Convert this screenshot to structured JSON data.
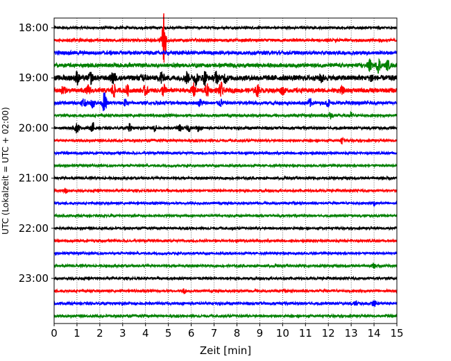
{
  "chart_data": {
    "type": "line",
    "title": "",
    "xlabel": "Zeit  [min]",
    "ylabel": "UTC (Lokalzeit = UTC + 02:00)",
    "xlim": [
      0,
      15
    ],
    "x_ticks": [
      "0",
      "1",
      "2",
      "3",
      "4",
      "5",
      "6",
      "7",
      "8",
      "9",
      "10",
      "11",
      "12",
      "13",
      "14",
      "15"
    ],
    "y_tick_labels": [
      "18:00",
      "19:00",
      "20:00",
      "21:00",
      "22:00",
      "23:00"
    ],
    "grid": "vertical dotted lines at each minute",
    "row_interval_min": 15,
    "trace_colors": [
      "#000000",
      "#ff0000",
      "#0000ff",
      "#008000"
    ],
    "series": [
      {
        "start": "18:00",
        "color": "#000000",
        "amp": 0.18,
        "events": []
      },
      {
        "start": "18:15",
        "color": "#ff0000",
        "amp": 0.22,
        "events": [
          {
            "t": 4.8,
            "a": 5.6
          }
        ]
      },
      {
        "start": "18:30",
        "color": "#0000ff",
        "amp": 0.28,
        "events": []
      },
      {
        "start": "18:45",
        "color": "#008000",
        "amp": 0.3,
        "events": [
          {
            "t": 13.8,
            "a": 0.9
          },
          {
            "t": 14.2,
            "a": 1.1
          },
          {
            "t": 14.6,
            "a": 0.7
          }
        ]
      },
      {
        "start": "19:00",
        "color": "#000000",
        "amp": 0.4,
        "events": [
          {
            "t": 1.0,
            "a": 0.9
          },
          {
            "t": 1.6,
            "a": 0.8
          },
          {
            "t": 2.6,
            "a": 1.0
          },
          {
            "t": 3.9,
            "a": 0.8
          },
          {
            "t": 4.7,
            "a": 0.9
          },
          {
            "t": 5.8,
            "a": 0.9
          },
          {
            "t": 6.2,
            "a": 1.0
          },
          {
            "t": 6.6,
            "a": 1.0
          },
          {
            "t": 7.1,
            "a": 0.9
          },
          {
            "t": 7.5,
            "a": 0.7
          },
          {
            "t": 11.7,
            "a": 0.6
          },
          {
            "t": 13.9,
            "a": 0.6
          }
        ]
      },
      {
        "start": "19:15",
        "color": "#ff0000",
        "amp": 0.35,
        "events": [
          {
            "t": 0.4,
            "a": 0.6
          },
          {
            "t": 1.5,
            "a": 0.7
          },
          {
            "t": 2.6,
            "a": 1.0
          },
          {
            "t": 3.2,
            "a": 0.7
          },
          {
            "t": 4.0,
            "a": 0.7
          },
          {
            "t": 4.8,
            "a": 0.9
          },
          {
            "t": 6.1,
            "a": 1.0
          },
          {
            "t": 6.7,
            "a": 0.8
          },
          {
            "t": 7.3,
            "a": 1.1
          },
          {
            "t": 8.9,
            "a": 0.8
          },
          {
            "t": 10.0,
            "a": 0.5
          },
          {
            "t": 12.6,
            "a": 0.4
          }
        ]
      },
      {
        "start": "19:30",
        "color": "#0000ff",
        "amp": 0.25,
        "events": [
          {
            "t": 1.3,
            "a": 0.8
          },
          {
            "t": 1.7,
            "a": 0.7
          },
          {
            "t": 2.2,
            "a": 1.6
          },
          {
            "t": 3.1,
            "a": 0.5
          },
          {
            "t": 6.4,
            "a": 0.5
          },
          {
            "t": 7.3,
            "a": 0.5
          },
          {
            "t": 11.2,
            "a": 0.6
          },
          {
            "t": 12.0,
            "a": 0.5
          }
        ]
      },
      {
        "start": "19:45",
        "color": "#008000",
        "amp": 0.2,
        "events": [
          {
            "t": 12.1,
            "a": 0.5
          },
          {
            "t": 13.0,
            "a": 0.4
          }
        ]
      },
      {
        "start": "20:00",
        "color": "#000000",
        "amp": 0.2,
        "events": [
          {
            "t": 1.0,
            "a": 0.8
          },
          {
            "t": 1.7,
            "a": 0.8
          },
          {
            "t": 3.3,
            "a": 0.6
          },
          {
            "t": 4.4,
            "a": 0.5
          },
          {
            "t": 5.5,
            "a": 0.5
          },
          {
            "t": 5.9,
            "a": 0.5
          },
          {
            "t": 6.3,
            "a": 0.4
          }
        ]
      },
      {
        "start": "20:15",
        "color": "#ff0000",
        "amp": 0.18,
        "events": [
          {
            "t": 12.6,
            "a": 0.4
          }
        ]
      },
      {
        "start": "20:30",
        "color": "#0000ff",
        "amp": 0.17,
        "events": []
      },
      {
        "start": "20:45",
        "color": "#008000",
        "amp": 0.17,
        "events": []
      },
      {
        "start": "21:00",
        "color": "#000000",
        "amp": 0.18,
        "events": []
      },
      {
        "start": "21:15",
        "color": "#ff0000",
        "amp": 0.18,
        "events": [
          {
            "t": 0.5,
            "a": 0.3
          }
        ]
      },
      {
        "start": "21:30",
        "color": "#0000ff",
        "amp": 0.17,
        "events": [
          {
            "t": 14.0,
            "a": 0.3
          }
        ]
      },
      {
        "start": "21:45",
        "color": "#008000",
        "amp": 0.17,
        "events": []
      },
      {
        "start": "22:00",
        "color": "#000000",
        "amp": 0.17,
        "events": []
      },
      {
        "start": "22:15",
        "color": "#ff0000",
        "amp": 0.17,
        "events": []
      },
      {
        "start": "22:30",
        "color": "#0000ff",
        "amp": 0.17,
        "events": []
      },
      {
        "start": "22:45",
        "color": "#008000",
        "amp": 0.18,
        "events": [
          {
            "t": 14.0,
            "a": 0.3
          }
        ]
      },
      {
        "start": "23:00",
        "color": "#000000",
        "amp": 0.18,
        "events": []
      },
      {
        "start": "23:15",
        "color": "#ff0000",
        "amp": 0.18,
        "events": [
          {
            "t": 5.7,
            "a": 0.35
          }
        ]
      },
      {
        "start": "23:30",
        "color": "#0000ff",
        "amp": 0.2,
        "events": [
          {
            "t": 14.0,
            "a": 0.45
          },
          {
            "t": 13.2,
            "a": 0.3
          }
        ]
      },
      {
        "start": "23:45",
        "color": "#008000",
        "amp": 0.18,
        "events": []
      }
    ]
  }
}
